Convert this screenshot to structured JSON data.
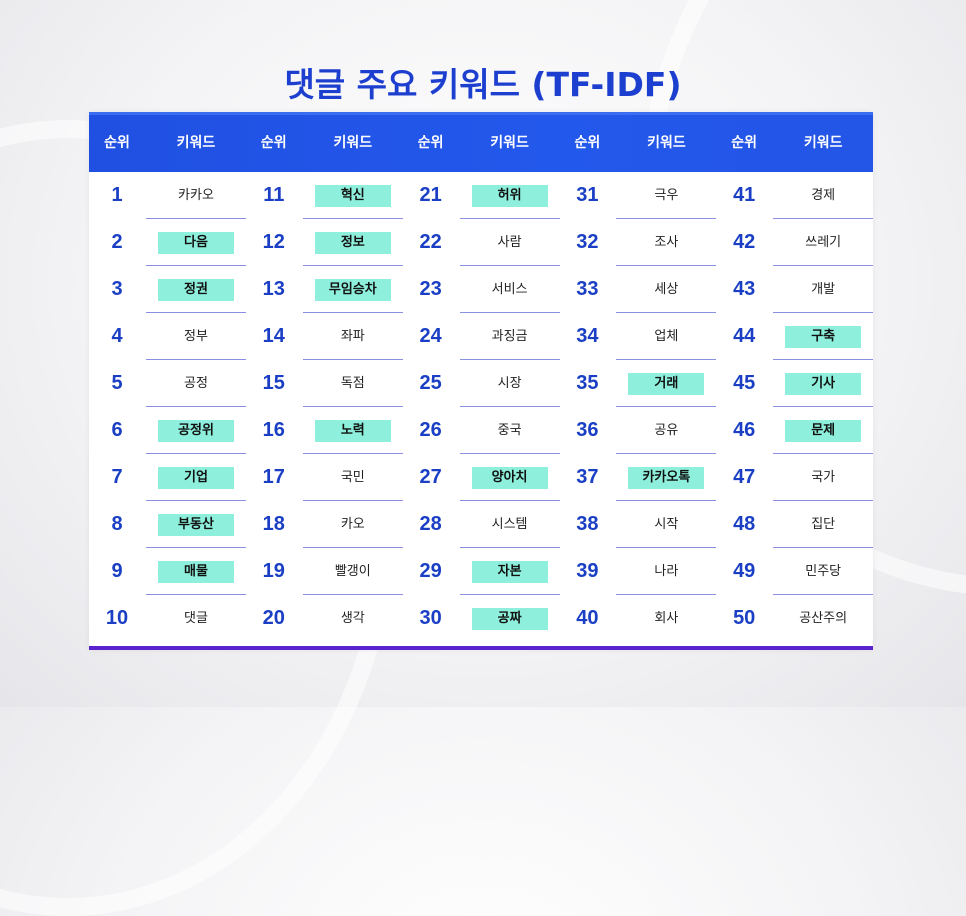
{
  "title": "댓글 주요 키워드 (TF-IDF)",
  "colors": {
    "title": "#1d3fcf",
    "header_bg": "#2353e8",
    "rank_text": "#1a3fc4",
    "highlight": "#8ef0dc",
    "divider": "#8a8fe4",
    "bottom_bar": "#5a23d0"
  },
  "header": {
    "rank_label": "순위",
    "keyword_label": "키워드"
  },
  "columns": [
    {
      "items": [
        {
          "rank": "1",
          "keyword": "카카오",
          "highlight": false
        },
        {
          "rank": "2",
          "keyword": "다음",
          "highlight": true
        },
        {
          "rank": "3",
          "keyword": "정권",
          "highlight": true
        },
        {
          "rank": "4",
          "keyword": "정부",
          "highlight": false
        },
        {
          "rank": "5",
          "keyword": "공정",
          "highlight": false
        },
        {
          "rank": "6",
          "keyword": "공정위",
          "highlight": true
        },
        {
          "rank": "7",
          "keyword": "기업",
          "highlight": true
        },
        {
          "rank": "8",
          "keyword": "부동산",
          "highlight": true
        },
        {
          "rank": "9",
          "keyword": "매물",
          "highlight": true
        },
        {
          "rank": "10",
          "keyword": "댓글",
          "highlight": false
        }
      ]
    },
    {
      "items": [
        {
          "rank": "11",
          "keyword": "혁신",
          "highlight": true
        },
        {
          "rank": "12",
          "keyword": "정보",
          "highlight": true
        },
        {
          "rank": "13",
          "keyword": "무임승차",
          "highlight": true
        },
        {
          "rank": "14",
          "keyword": "좌파",
          "highlight": false
        },
        {
          "rank": "15",
          "keyword": "독점",
          "highlight": false
        },
        {
          "rank": "16",
          "keyword": "노력",
          "highlight": true
        },
        {
          "rank": "17",
          "keyword": "국민",
          "highlight": false
        },
        {
          "rank": "18",
          "keyword": "카오",
          "highlight": false
        },
        {
          "rank": "19",
          "keyword": "빨갱이",
          "highlight": false
        },
        {
          "rank": "20",
          "keyword": "생각",
          "highlight": false
        }
      ]
    },
    {
      "items": [
        {
          "rank": "21",
          "keyword": "허위",
          "highlight": true
        },
        {
          "rank": "22",
          "keyword": "사람",
          "highlight": false
        },
        {
          "rank": "23",
          "keyword": "서비스",
          "highlight": false
        },
        {
          "rank": "24",
          "keyword": "과징금",
          "highlight": false
        },
        {
          "rank": "25",
          "keyword": "시장",
          "highlight": false
        },
        {
          "rank": "26",
          "keyword": "중국",
          "highlight": false
        },
        {
          "rank": "27",
          "keyword": "양아치",
          "highlight": true
        },
        {
          "rank": "28",
          "keyword": "시스템",
          "highlight": false
        },
        {
          "rank": "29",
          "keyword": "자본",
          "highlight": true
        },
        {
          "rank": "30",
          "keyword": "공짜",
          "highlight": true
        }
      ]
    },
    {
      "items": [
        {
          "rank": "31",
          "keyword": "극우",
          "highlight": false
        },
        {
          "rank": "32",
          "keyword": "조사",
          "highlight": false
        },
        {
          "rank": "33",
          "keyword": "세상",
          "highlight": false
        },
        {
          "rank": "34",
          "keyword": "업체",
          "highlight": false
        },
        {
          "rank": "35",
          "keyword": "거래",
          "highlight": true
        },
        {
          "rank": "36",
          "keyword": "공유",
          "highlight": false
        },
        {
          "rank": "37",
          "keyword": "카카오톡",
          "highlight": true
        },
        {
          "rank": "38",
          "keyword": "시작",
          "highlight": false
        },
        {
          "rank": "39",
          "keyword": "나라",
          "highlight": false
        },
        {
          "rank": "40",
          "keyword": "회사",
          "highlight": false
        }
      ]
    },
    {
      "items": [
        {
          "rank": "41",
          "keyword": "경제",
          "highlight": false
        },
        {
          "rank": "42",
          "keyword": "쓰레기",
          "highlight": false
        },
        {
          "rank": "43",
          "keyword": "개발",
          "highlight": false
        },
        {
          "rank": "44",
          "keyword": "구축",
          "highlight": true
        },
        {
          "rank": "45",
          "keyword": "기사",
          "highlight": true
        },
        {
          "rank": "46",
          "keyword": "문제",
          "highlight": true
        },
        {
          "rank": "47",
          "keyword": "국가",
          "highlight": false
        },
        {
          "rank": "48",
          "keyword": "집단",
          "highlight": false
        },
        {
          "rank": "49",
          "keyword": "민주당",
          "highlight": false
        },
        {
          "rank": "50",
          "keyword": "공산주의",
          "highlight": false
        }
      ]
    }
  ]
}
